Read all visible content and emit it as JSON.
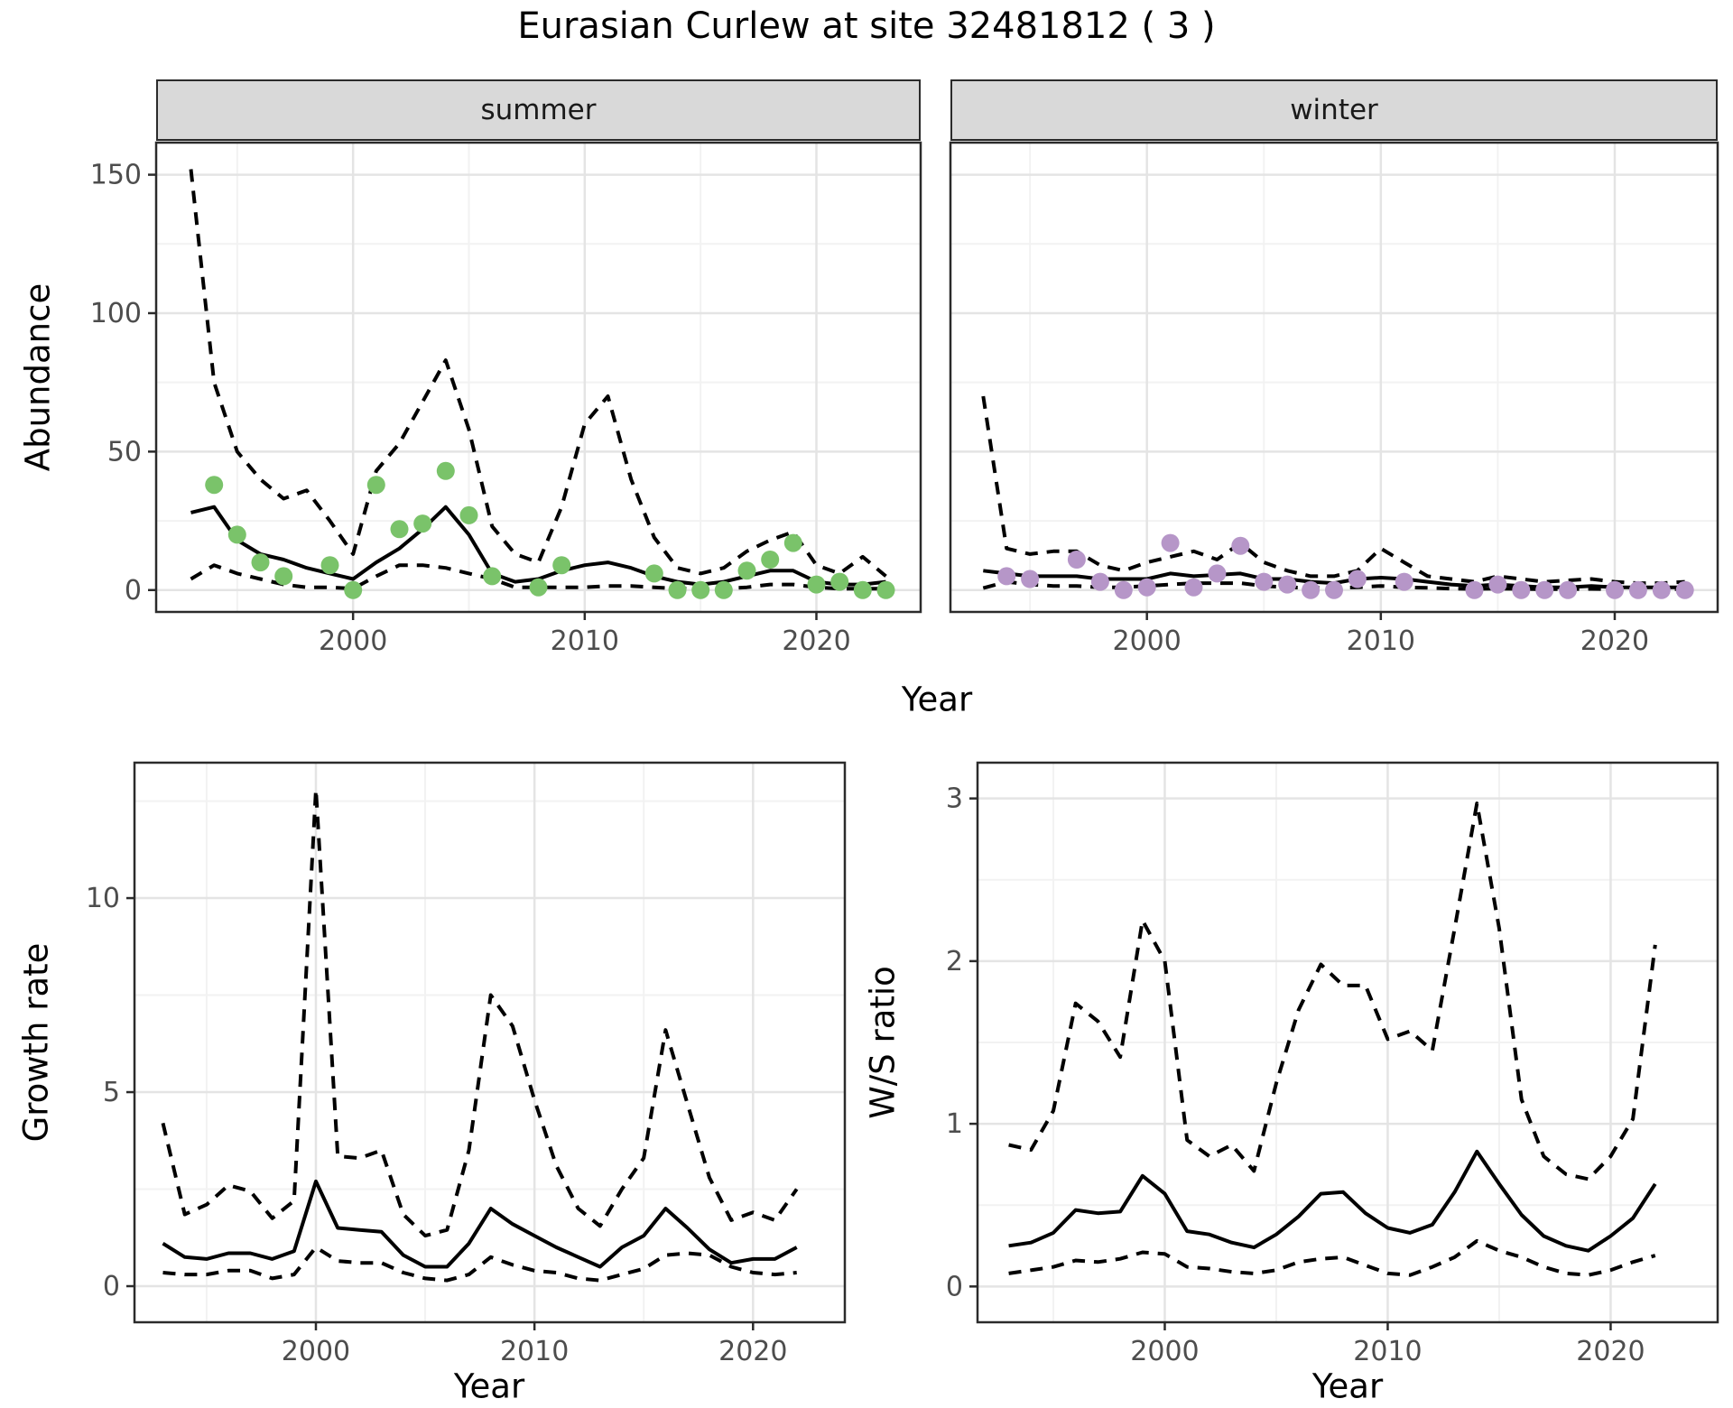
{
  "title": "Eurasian Curlew at site 32481812 ( 3 )",
  "facets": {
    "summer_label": "summer",
    "winter_label": "winter"
  },
  "axes": {
    "abundance_label": "Abundance",
    "year_label": "Year",
    "growth_label": "Growth rate",
    "ws_label": "W/S ratio"
  },
  "colors": {
    "summer_point": "#7ac36a",
    "winter_point": "#b696c8",
    "line": "#000000",
    "strip_bg": "#d9d9d9",
    "grid_major": "#e4e4e4",
    "grid_minor": "#f2f2f2",
    "panel_border": "#2b2b2b",
    "tick_text": "#4d4d4d"
  },
  "chart_data": [
    {
      "id": "abundance-summer",
      "type": "line",
      "facet_label": "summer",
      "xlabel": "Year",
      "ylabel": "Abundance",
      "x_ticks": [
        2000,
        2010,
        2020
      ],
      "y_ticks": [
        0,
        50,
        100,
        150
      ],
      "x": [
        1993,
        1994,
        1995,
        1996,
        1997,
        1998,
        1999,
        2000,
        2001,
        2002,
        2003,
        2004,
        2005,
        2006,
        2007,
        2008,
        2009,
        2010,
        2011,
        2012,
        2013,
        2014,
        2015,
        2016,
        2017,
        2018,
        2019,
        2020,
        2021,
        2022,
        2023
      ],
      "series": [
        {
          "name": "mean",
          "style": "solid",
          "values": [
            28,
            30,
            18,
            13,
            11,
            8,
            6,
            4,
            10,
            15,
            22,
            30,
            20,
            6,
            3,
            4,
            7,
            9,
            10,
            8,
            5,
            3,
            2,
            3,
            5,
            7,
            7,
            3,
            2,
            2,
            3
          ]
        },
        {
          "name": "upper_ci",
          "style": "dashed",
          "values": [
            152,
            75,
            50,
            40,
            33,
            36,
            25,
            13,
            43,
            53,
            68,
            83,
            58,
            23,
            13,
            10,
            30,
            60,
            70,
            40,
            19,
            8,
            6,
            8,
            14,
            18,
            21,
            9,
            6,
            12,
            5
          ]
        },
        {
          "name": "lower_ci",
          "style": "dashed",
          "values": [
            4,
            9,
            6,
            4,
            2,
            1,
            1,
            0.5,
            5,
            9,
            9,
            8,
            6,
            4,
            1,
            1,
            1,
            1,
            1.5,
            1.5,
            1,
            0.5,
            0.5,
            0.5,
            1,
            2,
            2,
            1,
            0.5,
            0.5,
            0.5
          ]
        }
      ],
      "points": {
        "name": "observed",
        "color": "#7ac36a",
        "x": [
          1994,
          1995,
          1996,
          1997,
          1999,
          2000,
          2001,
          2002,
          2003,
          2004,
          2005,
          2006,
          2008,
          2009,
          2013,
          2014,
          2015,
          2016,
          2017,
          2018,
          2019,
          2020,
          2021,
          2022,
          2023
        ],
        "y": [
          38,
          20,
          10,
          5,
          9,
          0,
          38,
          22,
          24,
          43,
          27,
          5,
          1,
          9,
          6,
          0,
          0,
          0,
          7,
          11,
          17,
          2,
          3,
          0,
          0
        ]
      }
    },
    {
      "id": "abundance-winter",
      "type": "line",
      "facet_label": "winter",
      "xlabel": "Year",
      "ylabel": "Abundance",
      "x_ticks": [
        2000,
        2010,
        2020
      ],
      "y_ticks": [
        0,
        50,
        100,
        150
      ],
      "x": [
        1993,
        1994,
        1995,
        1996,
        1997,
        1998,
        1999,
        2000,
        2001,
        2002,
        2003,
        2004,
        2005,
        2006,
        2007,
        2008,
        2009,
        2010,
        2011,
        2012,
        2013,
        2014,
        2015,
        2016,
        2017,
        2018,
        2019,
        2020,
        2021,
        2022,
        2023
      ],
      "series": [
        {
          "name": "mean",
          "style": "solid",
          "values": [
            7,
            6,
            5,
            5,
            5,
            4,
            4,
            4,
            6,
            5,
            5.5,
            6,
            4,
            4,
            3,
            2.5,
            4,
            4.5,
            4,
            3,
            2,
            1.5,
            2,
            1.5,
            1,
            1,
            1.5,
            1,
            1,
            1,
            1
          ]
        },
        {
          "name": "upper_ci",
          "style": "dashed",
          "values": [
            70,
            15,
            13,
            14,
            14,
            9,
            7,
            10,
            12,
            14,
            11,
            17,
            10,
            7,
            5,
            5,
            7,
            15,
            10,
            5,
            4,
            3,
            5,
            4,
            3,
            3.5,
            4,
            3,
            2.5,
            2.5,
            3
          ]
        },
        {
          "name": "lower_ci",
          "style": "dashed",
          "values": [
            0.7,
            3,
            2,
            1.5,
            1.5,
            1,
            1,
            1.5,
            2,
            2.5,
            2.5,
            2.5,
            1.5,
            1,
            0.8,
            0.8,
            1,
            1.5,
            1,
            0.8,
            0.5,
            0.4,
            0.5,
            0.4,
            0.3,
            0.3,
            0.4,
            0.3,
            0.3,
            0.3,
            0.3
          ]
        }
      ],
      "points": {
        "name": "observed",
        "color": "#b696c8",
        "x": [
          1994,
          1995,
          1997,
          1998,
          1999,
          2000,
          2001,
          2002,
          2003,
          2004,
          2005,
          2006,
          2007,
          2008,
          2009,
          2011,
          2014,
          2015,
          2016,
          2017,
          2018,
          2020,
          2021,
          2022,
          2023
        ],
        "y": [
          5,
          4,
          11,
          3,
          0,
          1,
          17,
          1,
          6,
          16,
          3,
          2,
          0,
          0,
          4,
          3,
          0,
          2,
          0,
          0,
          0,
          0,
          0,
          0,
          0
        ]
      }
    },
    {
      "id": "growth-rate",
      "type": "line",
      "xlabel": "Year",
      "ylabel": "Growth rate",
      "x_ticks": [
        2000,
        2010,
        2020
      ],
      "y_ticks": [
        0,
        5,
        10
      ],
      "x": [
        1993,
        1994,
        1995,
        1996,
        1997,
        1998,
        1999,
        2000,
        2001,
        2002,
        2003,
        2004,
        2005,
        2006,
        2007,
        2008,
        2009,
        2010,
        2011,
        2012,
        2013,
        2014,
        2015,
        2016,
        2017,
        2018,
        2019,
        2020,
        2021,
        2022
      ],
      "series": [
        {
          "name": "mean",
          "style": "solid",
          "values": [
            1.1,
            0.75,
            0.7,
            0.85,
            0.85,
            0.7,
            0.9,
            2.7,
            1.5,
            1.45,
            1.4,
            0.8,
            0.5,
            0.5,
            1.1,
            2.0,
            1.6,
            1.3,
            1.0,
            0.75,
            0.5,
            1.0,
            1.3,
            2.0,
            1.5,
            0.95,
            0.6,
            0.7,
            0.7,
            1.0
          ]
        },
        {
          "name": "upper_ci",
          "style": "dashed",
          "values": [
            4.2,
            1.85,
            2.1,
            2.6,
            2.45,
            1.75,
            2.2,
            12.8,
            3.35,
            3.3,
            3.5,
            1.85,
            1.3,
            1.45,
            3.5,
            7.5,
            6.7,
            4.8,
            3.1,
            2.0,
            1.55,
            2.5,
            3.3,
            6.6,
            4.7,
            2.8,
            1.7,
            1.9,
            1.7,
            2.5
          ]
        },
        {
          "name": "lower_ci",
          "style": "dashed",
          "values": [
            0.35,
            0.3,
            0.3,
            0.4,
            0.4,
            0.2,
            0.3,
            1.0,
            0.65,
            0.6,
            0.6,
            0.35,
            0.2,
            0.15,
            0.3,
            0.75,
            0.55,
            0.4,
            0.35,
            0.2,
            0.15,
            0.3,
            0.45,
            0.8,
            0.85,
            0.8,
            0.5,
            0.35,
            0.3,
            0.35
          ]
        }
      ]
    },
    {
      "id": "ws-ratio",
      "type": "line",
      "xlabel": "Year",
      "ylabel": "W/S ratio",
      "x_ticks": [
        2000,
        2010,
        2020
      ],
      "y_ticks": [
        0,
        1,
        2,
        3
      ],
      "x": [
        1993,
        1994,
        1995,
        1996,
        1997,
        1998,
        1999,
        2000,
        2001,
        2002,
        2003,
        2004,
        2005,
        2006,
        2007,
        2008,
        2009,
        2010,
        2011,
        2012,
        2013,
        2014,
        2015,
        2016,
        2017,
        2018,
        2019,
        2020,
        2021,
        2022
      ],
      "series": [
        {
          "name": "mean",
          "style": "solid",
          "values": [
            0.25,
            0.27,
            0.33,
            0.47,
            0.45,
            0.46,
            0.68,
            0.57,
            0.34,
            0.32,
            0.27,
            0.24,
            0.32,
            0.43,
            0.57,
            0.58,
            0.45,
            0.36,
            0.33,
            0.38,
            0.58,
            0.83,
            0.63,
            0.44,
            0.31,
            0.25,
            0.22,
            0.31,
            0.42,
            0.63
          ]
        },
        {
          "name": "upper_ci",
          "style": "dashed",
          "values": [
            0.87,
            0.84,
            1.08,
            1.74,
            1.63,
            1.41,
            2.25,
            2.0,
            0.9,
            0.8,
            0.87,
            0.71,
            1.25,
            1.7,
            1.98,
            1.85,
            1.85,
            1.52,
            1.57,
            1.45,
            2.2,
            2.97,
            2.2,
            1.15,
            0.8,
            0.69,
            0.66,
            0.8,
            1.03,
            2.1
          ]
        },
        {
          "name": "lower_ci",
          "style": "dashed",
          "values": [
            0.08,
            0.1,
            0.12,
            0.16,
            0.15,
            0.17,
            0.21,
            0.2,
            0.12,
            0.11,
            0.09,
            0.08,
            0.1,
            0.15,
            0.17,
            0.18,
            0.13,
            0.08,
            0.07,
            0.12,
            0.18,
            0.28,
            0.22,
            0.18,
            0.12,
            0.08,
            0.07,
            0.1,
            0.15,
            0.19
          ]
        }
      ]
    }
  ]
}
